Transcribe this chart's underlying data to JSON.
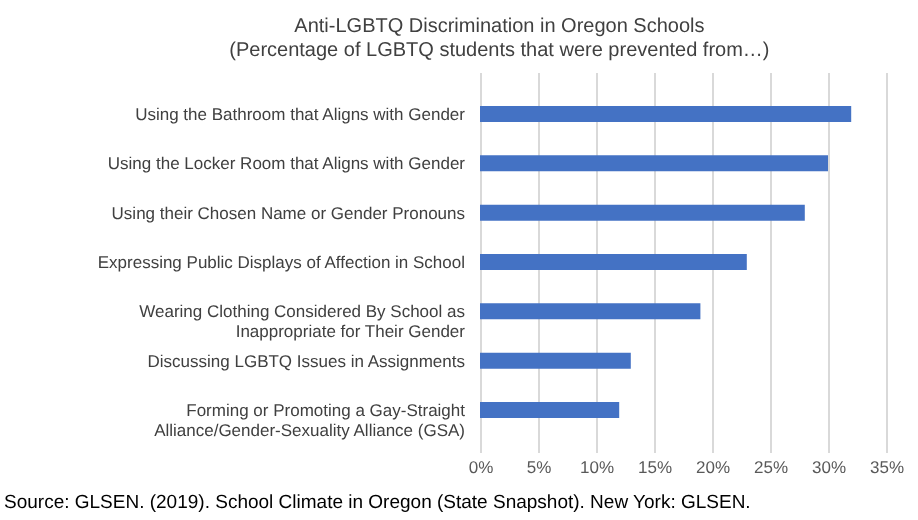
{
  "chart_data": {
    "type": "bar",
    "orientation": "horizontal",
    "title": "Anti-LGBTQ Discrimination in Oregon Schools",
    "subtitle": "(Percentage of LGBTQ students that were prevented from…)",
    "categories": [
      "Using the Bathroom that Aligns with Gender",
      "Using the Locker Room that Aligns with Gender",
      "Using their Chosen Name or Gender Pronouns",
      "Expressing Public Displays of Affection in School",
      "Wearing Clothing Considered By School as\nInappropriate for Their Gender",
      "Discussing LGBTQ Issues in Assignments",
      "Forming or Promoting a Gay-Straight\nAlliance/Gender-Sexuality Alliance (GSA)"
    ],
    "values": [
      32,
      30,
      28,
      23,
      19,
      13,
      12
    ],
    "color": "#4472c4",
    "xlim": [
      0,
      35
    ],
    "xticks": [
      {
        "value": 0,
        "label": "0%"
      },
      {
        "value": 5,
        "label": "5%"
      },
      {
        "value": 10,
        "label": "10%"
      },
      {
        "value": 15,
        "label": "15%"
      },
      {
        "value": 20,
        "label": "20%"
      },
      {
        "value": 25,
        "label": "25%"
      },
      {
        "value": 30,
        "label": "30%"
      },
      {
        "value": 35,
        "label": "35%"
      }
    ],
    "grid": "x",
    "annotations": [
      "Source: GLSEN. (2019). School Climate in Oregon (State Snapshot). New York: GLSEN."
    ]
  }
}
